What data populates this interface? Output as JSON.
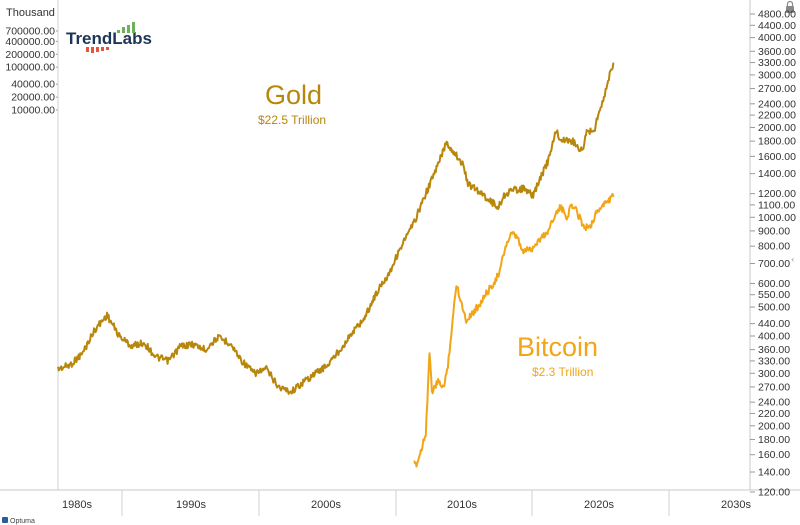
{
  "chart_data": {
    "type": "line",
    "unit_label": "Thousand",
    "brand": "TrendLabs",
    "footer": "Optuma",
    "left_axis": {
      "scale": "log",
      "ticks": [
        "700000.00",
        "400000.00",
        "200000.00",
        "100000.00",
        "40000.00",
        "20000.00",
        "10000.00"
      ]
    },
    "right_axis": {
      "scale": "log",
      "ticks": [
        "4800.00",
        "4400.00",
        "4000.00",
        "3600.00",
        "3300.00",
        "3000.00",
        "2700.00",
        "2400.00",
        "2200.00",
        "2000.00",
        "1800.00",
        "1600.00",
        "1400.00",
        "1200.00",
        "1100.00",
        "1000.00",
        "900.00",
        "800.00",
        "700.00",
        "600.00",
        "550.00",
        "500.00",
        "440.00",
        "400.00",
        "360.00",
        "330.00",
        "300.00",
        "270.00",
        "240.00",
        "220.00",
        "200.00",
        "180.00",
        "160.00",
        "140.00",
        "120.00"
      ]
    },
    "x_axis": {
      "labels": [
        "1980s",
        "1990s",
        "2000s",
        "2010s",
        "2020s",
        "2030s"
      ]
    },
    "series": [
      {
        "name": "Gold",
        "subtitle": "$22.5 Trillion",
        "color": "#b8860b",
        "axis": "right",
        "x": [
          1980.0,
          1981.0,
          1982.0,
          1983.0,
          1984.0,
          1985.0,
          1986.0,
          1987.0,
          1988.0,
          1989.0,
          1990.0,
          1991.0,
          1992.0,
          1993.0,
          1994.0,
          1995.0,
          1996.0,
          1997.0,
          1998.0,
          1999.0,
          2000.0,
          2001.0,
          2002.0,
          2003.0,
          2004.0,
          2005.0,
          2006.0,
          2007.0,
          2008.0,
          2009.0,
          2010.0,
          2011.0,
          2011.7,
          2012.0,
          2012.5,
          2013.0,
          2013.5,
          2014.0,
          2015.0,
          2015.9,
          2016.5,
          2017.0,
          2018.0,
          2018.7,
          2019.0,
          2019.5,
          2020.0,
          2020.6,
          2021.0,
          2022.0,
          2022.8,
          2023.0,
          2023.8,
          2024.2,
          2024.6,
          2025.0,
          2025.3
        ],
        "y": [
          310,
          320,
          350,
          420,
          470,
          400,
          370,
          380,
          340,
          330,
          370,
          375,
          360,
          395,
          380,
          330,
          300,
          310,
          270,
          260,
          280,
          300,
          320,
          360,
          410,
          460,
          560,
          650,
          800,
          950,
          1200,
          1500,
          1800,
          1700,
          1620,
          1500,
          1280,
          1250,
          1160,
          1080,
          1200,
          1230,
          1250,
          1180,
          1250,
          1400,
          1550,
          1950,
          1820,
          1800,
          1650,
          1900,
          2000,
          2300,
          2600,
          3000,
          3300
        ]
      },
      {
        "name": "Bitcoin",
        "subtitle": "$2.3 Trillion",
        "color": "#f2a516",
        "axis": "right",
        "x": [
          2009.0,
          2009.3,
          2009.6,
          2010.0,
          2010.3,
          2010.5,
          2011.0,
          2011.5,
          2011.8,
          2012.0,
          2012.5,
          2013.0,
          2013.3,
          2013.6,
          2013.9,
          2014.5,
          2015.0,
          2015.5,
          2016.0,
          2016.5,
          2017.0,
          2017.5,
          2017.9,
          2018.2,
          2018.6,
          2019.0,
          2019.5,
          2020.0,
          2020.4,
          2020.8,
          2021.0,
          2021.5,
          2021.9,
          2022.3,
          2022.8,
          2023.0,
          2023.5,
          2024.0,
          2024.5,
          2025.0,
          2025.3
        ],
        "y": [
          148,
          150,
          165,
          190,
          350,
          260,
          280,
          270,
          320,
          380,
          600,
          500,
          450,
          470,
          480,
          520,
          560,
          600,
          650,
          800,
          880,
          850,
          760,
          780,
          780,
          820,
          860,
          900,
          1000,
          1050,
          1080,
          1000,
          1100,
          1050,
          950,
          920,
          950,
          1050,
          1100,
          1150,
          1170
        ]
      }
    ]
  }
}
